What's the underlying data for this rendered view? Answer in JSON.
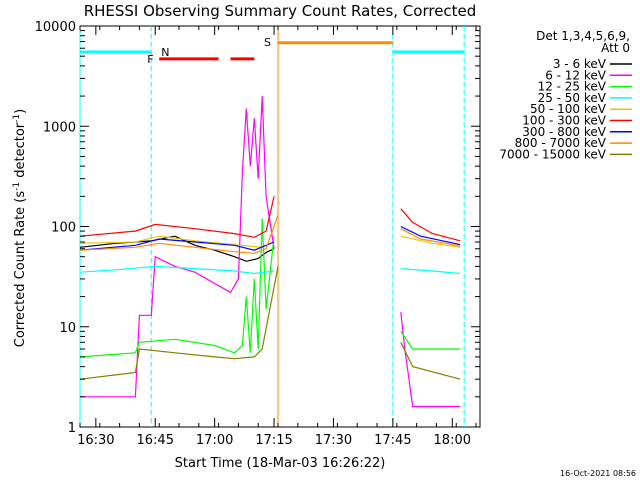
{
  "chart_data": {
    "type": "line",
    "title": "RHESSI Observing Summary Count Rates, Corrected",
    "xlabel": "Start Time (18-Mar-03 16:26:22)",
    "ylabel": "Corrected Count Rate (s⁻¹ detector⁻¹)",
    "ylabel_main": "Corrected Count Rate (s",
    "ylabel_exp1": "-1",
    "ylabel_mid": " detector",
    "ylabel_exp2": "-1",
    "ylabel_close": ")",
    "y_scale": "log",
    "xlim": [
      "16:26",
      "18:07"
    ],
    "ylim": [
      1,
      10000
    ],
    "x_ticks": [
      "16:30",
      "16:45",
      "17:00",
      "17:15",
      "17:30",
      "17:45",
      "18:00"
    ],
    "y_ticks": [
      "1",
      "10",
      "100",
      "1000",
      "10000"
    ],
    "legend_title": [
      "Det 1,3,4,5,6,9,",
      "Att 0"
    ],
    "legend_position": "right",
    "timestamp": "16-Oct-2021 08:56",
    "colors": {
      "ch1": "#000000",
      "ch2": "#ff00ff",
      "ch3": "#00ff00",
      "ch4": "#00ffff",
      "ch5": "#e6c800",
      "ch6": "#ff0000",
      "ch7": "#0000ff",
      "ch8": "#ff8c00",
      "ch9": "#808000"
    },
    "series": [
      {
        "name": "3 - 6 keV",
        "color": "#000000",
        "segments": [
          [
            [
              "16:26",
              62
            ],
            [
              "16:35",
              68
            ],
            [
              "16:40",
              70
            ],
            [
              "16:44",
              72
            ],
            [
              "16:50",
              80
            ],
            [
              "16:55",
              65
            ],
            [
              "17:00",
              58
            ],
            [
              "17:05",
              50
            ],
            [
              "17:08",
              45
            ],
            [
              "17:11",
              48
            ],
            [
              "17:13",
              55
            ],
            [
              "17:15",
              60
            ]
          ]
        ]
      },
      {
        "name": "6 - 12 keV",
        "color": "#ff00ff",
        "segments": [
          [
            [
              "16:26",
              2
            ],
            [
              "16:40",
              2
            ],
            [
              "16:41",
              13
            ],
            [
              "16:44",
              13
            ],
            [
              "16:45",
              50
            ],
            [
              "16:50",
              40
            ],
            [
              "16:55",
              35
            ],
            [
              "17:00",
              27
            ],
            [
              "17:04",
              22
            ],
            [
              "17:06",
              30
            ],
            [
              "17:07",
              350
            ],
            [
              "17:08",
              1500
            ],
            [
              "17:09",
              400
            ],
            [
              "17:10",
              1200
            ],
            [
              "17:11",
              300
            ],
            [
              "17:12",
              2000
            ],
            [
              "17:13",
              200
            ],
            [
              "17:15",
              60
            ]
          ],
          [
            [
              "17:47",
              14
            ],
            [
              "17:48",
              6
            ],
            [
              "17:50",
              1.6
            ],
            [
              "18:02",
              1.6
            ]
          ]
        ]
      },
      {
        "name": "12 - 25 keV",
        "color": "#00ff00",
        "segments": [
          [
            [
              "16:26",
              5
            ],
            [
              "16:40",
              5.5
            ],
            [
              "16:41",
              7
            ],
            [
              "16:50",
              7.5
            ],
            [
              "17:00",
              6.5
            ],
            [
              "17:05",
              5.5
            ],
            [
              "17:07",
              6.5
            ],
            [
              "17:08",
              20
            ],
            [
              "17:09",
              5.5
            ],
            [
              "17:10",
              30
            ],
            [
              "17:11",
              6
            ],
            [
              "17:12",
              120
            ],
            [
              "17:13",
              15
            ],
            [
              "17:15",
              80
            ]
          ],
          [
            [
              "17:47",
              9
            ],
            [
              "17:50",
              6
            ],
            [
              "18:02",
              6
            ]
          ]
        ]
      },
      {
        "name": "25 - 50 keV",
        "color": "#00ffff",
        "segments": [
          [
            [
              "16:26",
              35
            ],
            [
              "16:35",
              37
            ],
            [
              "16:45",
              40
            ],
            [
              "16:55",
              38
            ],
            [
              "17:05",
              36
            ],
            [
              "17:10",
              34
            ],
            [
              "17:15",
              36
            ]
          ],
          [
            [
              "17:47",
              38
            ],
            [
              "17:55",
              36
            ],
            [
              "18:02",
              34
            ]
          ]
        ]
      },
      {
        "name": "50 - 100 keV",
        "color": "#e6c800",
        "segments": [
          [
            [
              "16:26",
              68
            ],
            [
              "16:40",
              70
            ],
            [
              "16:46",
              80
            ],
            [
              "16:55",
              72
            ],
            [
              "17:05",
              66
            ],
            [
              "17:12",
              62
            ],
            [
              "17:15",
              70
            ]
          ],
          [
            [
              "17:47",
              80
            ],
            [
              "17:55",
              68
            ],
            [
              "18:02",
              62
            ]
          ]
        ]
      },
      {
        "name": "100 - 300 keV",
        "color": "#ff0000",
        "segments": [
          [
            [
              "16:26",
              80
            ],
            [
              "16:40",
              90
            ],
            [
              "16:45",
              105
            ],
            [
              "16:55",
              95
            ],
            [
              "17:05",
              85
            ],
            [
              "17:10",
              78
            ],
            [
              "17:13",
              90
            ],
            [
              "17:15",
              200
            ]
          ],
          [
            [
              "17:47",
              150
            ],
            [
              "17:50",
              110
            ],
            [
              "17:55",
              85
            ],
            [
              "18:02",
              72
            ]
          ]
        ]
      },
      {
        "name": "300 - 800 keV",
        "color": "#0000ff",
        "segments": [
          [
            [
              "16:26",
              58
            ],
            [
              "16:40",
              65
            ],
            [
              "16:46",
              75
            ],
            [
              "16:55",
              70
            ],
            [
              "17:05",
              65
            ],
            [
              "17:10",
              58
            ],
            [
              "17:15",
              70
            ]
          ],
          [
            [
              "17:47",
              100
            ],
            [
              "17:52",
              80
            ],
            [
              "18:02",
              66
            ]
          ]
        ]
      },
      {
        "name": "800 - 7000 keV",
        "color": "#ff8c00",
        "segments": [
          [
            [
              "16:26",
              58
            ],
            [
              "16:40",
              62
            ],
            [
              "16:46",
              68
            ],
            [
              "16:55",
              62
            ],
            [
              "17:05",
              56
            ],
            [
              "17:10",
              54
            ],
            [
              "17:13",
              60
            ],
            [
              "17:16",
              130
            ]
          ],
          [
            [
              "17:47",
              95
            ],
            [
              "17:52",
              75
            ],
            [
              "18:02",
              64
            ]
          ]
        ]
      },
      {
        "name": "7000 - 15000 keV",
        "color": "#808000",
        "segments": [
          [
            [
              "16:26",
              3
            ],
            [
              "16:40",
              3.5
            ],
            [
              "16:41",
              6
            ],
            [
              "16:50",
              5.5
            ],
            [
              "17:00",
              5
            ],
            [
              "17:05",
              4.8
            ],
            [
              "17:10",
              5
            ],
            [
              "17:12",
              6
            ],
            [
              "17:15",
              25
            ],
            [
              "17:16",
              40
            ]
          ],
          [
            [
              "17:47",
              7
            ],
            [
              "17:50",
              4
            ],
            [
              "18:02",
              3
            ]
          ]
        ]
      }
    ],
    "annotations": {
      "night": [
        {
          "label": "N",
          "start": "16:45",
          "end": "17:45"
        }
      ],
      "night_bars": [
        {
          "start": "16:26",
          "end": "16:44",
          "y": 5500
        },
        {
          "start": "17:45",
          "end": "18:03",
          "y": 5500
        }
      ],
      "saa": {
        "label": "S",
        "start": "17:16",
        "end": "17:45",
        "y": 6800
      },
      "flare": {
        "label": "F",
        "bars": [
          {
            "start": "16:46",
            "end": "17:01",
            "y": 4700
          },
          {
            "start": "17:04",
            "end": "17:10",
            "y": 4700
          }
        ]
      },
      "vlines": [
        {
          "time": "16:26",
          "color": "#00ffff",
          "style": "solid"
        },
        {
          "time": "16:44",
          "color": "#00ffff",
          "style": "dashed"
        },
        {
          "time": "17:16",
          "color": "#ff8c00",
          "style": "solid"
        },
        {
          "time": "17:45",
          "color": "#00ffff",
          "style": "dashed"
        },
        {
          "time": "18:03",
          "color": "#00ffff",
          "style": "dashed"
        }
      ]
    }
  }
}
